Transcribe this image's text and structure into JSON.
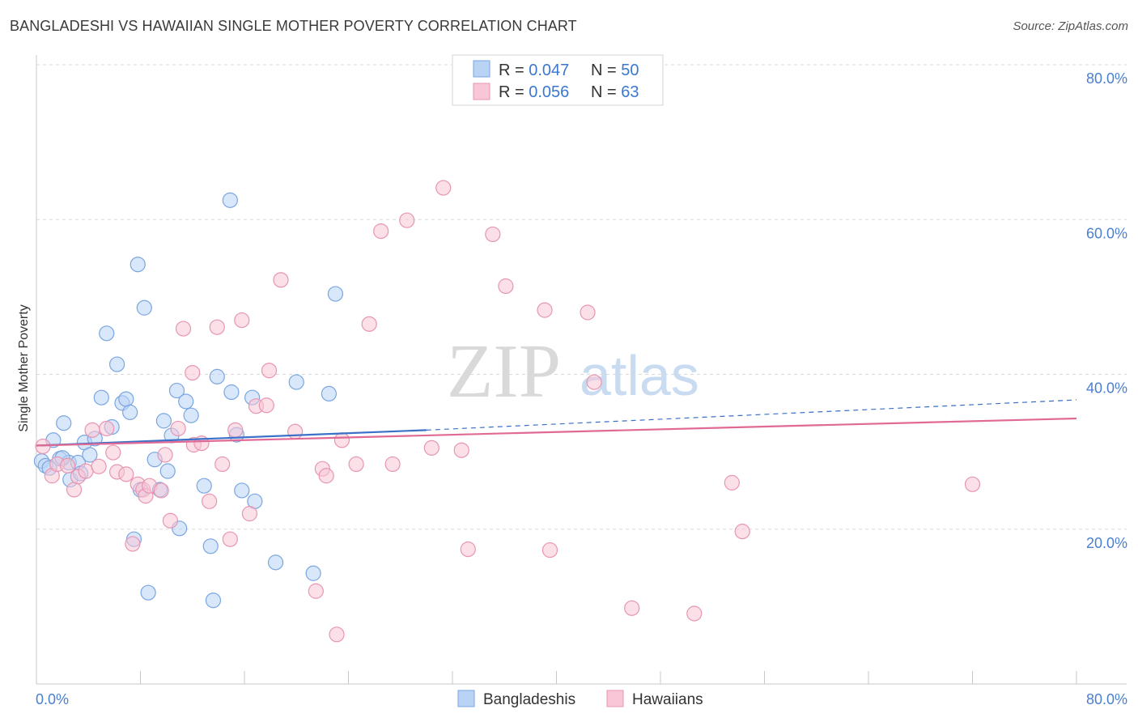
{
  "title": "BANGLADESHI VS HAWAIIAN SINGLE MOTHER POVERTY CORRELATION CHART",
  "source": "Source: ZipAtlas.com",
  "watermark": {
    "zip": "ZIP",
    "atlas": "atlas"
  },
  "colors": {
    "bangladeshi_fill": "#b9d3f5",
    "bangladeshi_stroke": "#7aa6e0",
    "bangladeshi_line": "#3a70c8",
    "hawaiian_fill": "#f8c6d6",
    "hawaiian_stroke": "#e795b2",
    "hawaiian_line": "#e06a95",
    "tick_label": "#4a7fd0",
    "grid": "#d8d8d8"
  },
  "legend": {
    "rows": [
      {
        "r_label": "R = ",
        "r_value": "0.047",
        "n_label": "N = ",
        "n_value": "50"
      },
      {
        "r_label": "R = ",
        "r_value": "0.056",
        "n_label": "N = ",
        "n_value": "63"
      }
    ]
  },
  "bottom_legend": [
    "Bangladeshis",
    "Hawaiians"
  ],
  "chart_data": {
    "type": "scatter",
    "title": "BANGLADESHI VS HAWAIIAN SINGLE MOTHER POVERTY CORRELATION CHART",
    "xlabel": "",
    "ylabel": "Single Mother Poverty",
    "xlim": [
      0,
      80
    ],
    "ylim": [
      0,
      80
    ],
    "x_tick_labels": [
      "0.0%",
      "80.0%"
    ],
    "y_ticks": [
      20,
      40,
      60,
      80
    ],
    "y_tick_labels": [
      "20.0%",
      "40.0%",
      "60.0%",
      "80.0%"
    ],
    "grid": true,
    "series": [
      {
        "name": "Bangladeshis",
        "r": 0.047,
        "n": 50,
        "trend": {
          "x0": 0,
          "y0": 30.8,
          "x1": 30,
          "y1": 32.8,
          "dashed_to_x": 80,
          "dashed_to_y": 36.7
        },
        "points": [
          [
            0.4,
            28.8
          ],
          [
            0.7,
            28.2
          ],
          [
            1.3,
            31.5
          ],
          [
            1.8,
            29.1
          ],
          [
            2.1,
            33.7
          ],
          [
            2.5,
            28.6
          ],
          [
            2.6,
            26.4
          ],
          [
            3.2,
            28.6
          ],
          [
            3.4,
            27.2
          ],
          [
            3.7,
            31.2
          ],
          [
            4.1,
            29.6
          ],
          [
            4.5,
            31.7
          ],
          [
            5.0,
            37.0
          ],
          [
            5.4,
            45.3
          ],
          [
            5.8,
            33.2
          ],
          [
            6.2,
            41.3
          ],
          [
            6.6,
            36.3
          ],
          [
            6.9,
            36.8
          ],
          [
            7.2,
            35.1
          ],
          [
            7.5,
            18.7
          ],
          [
            7.8,
            54.2
          ],
          [
            8.0,
            25.1
          ],
          [
            8.3,
            48.6
          ],
          [
            8.6,
            11.8
          ],
          [
            9.1,
            29.0
          ],
          [
            9.5,
            25.1
          ],
          [
            9.8,
            34.0
          ],
          [
            10.1,
            27.5
          ],
          [
            10.4,
            32.1
          ],
          [
            10.8,
            37.9
          ],
          [
            11.0,
            20.1
          ],
          [
            11.5,
            36.5
          ],
          [
            11.9,
            34.7
          ],
          [
            12.9,
            25.6
          ],
          [
            13.4,
            17.8
          ],
          [
            13.6,
            10.8
          ],
          [
            13.9,
            39.7
          ],
          [
            14.9,
            62.5
          ],
          [
            15.0,
            37.7
          ],
          [
            15.4,
            32.2
          ],
          [
            15.8,
            25.0
          ],
          [
            16.6,
            37.0
          ],
          [
            16.8,
            23.6
          ],
          [
            18.4,
            15.7
          ],
          [
            20.0,
            39.0
          ],
          [
            21.3,
            14.3
          ],
          [
            22.5,
            37.5
          ],
          [
            23.0,
            50.4
          ],
          [
            1.0,
            27.9
          ],
          [
            2.0,
            29.2
          ]
        ]
      },
      {
        "name": "Hawaiians",
        "r": 0.056,
        "n": 63,
        "trend": {
          "x0": 0,
          "y0": 30.8,
          "x1": 80,
          "y1": 34.3
        },
        "points": [
          [
            0.5,
            30.7
          ],
          [
            1.2,
            26.9
          ],
          [
            1.6,
            28.4
          ],
          [
            2.4,
            28.2
          ],
          [
            2.9,
            25.1
          ],
          [
            3.2,
            26.8
          ],
          [
            3.8,
            27.5
          ],
          [
            4.3,
            32.8
          ],
          [
            4.8,
            28.1
          ],
          [
            5.4,
            33.0
          ],
          [
            5.9,
            29.9
          ],
          [
            6.2,
            27.4
          ],
          [
            6.9,
            27.1
          ],
          [
            7.4,
            18.1
          ],
          [
            7.8,
            25.8
          ],
          [
            8.2,
            25.1
          ],
          [
            8.4,
            24.3
          ],
          [
            8.7,
            25.6
          ],
          [
            9.6,
            25.0
          ],
          [
            9.9,
            29.6
          ],
          [
            10.3,
            21.1
          ],
          [
            10.9,
            33.0
          ],
          [
            11.3,
            45.9
          ],
          [
            12.0,
            40.2
          ],
          [
            12.1,
            30.9
          ],
          [
            12.7,
            31.1
          ],
          [
            13.3,
            23.6
          ],
          [
            13.9,
            46.1
          ],
          [
            14.3,
            28.4
          ],
          [
            14.9,
            18.7
          ],
          [
            15.3,
            32.8
          ],
          [
            15.8,
            47.0
          ],
          [
            16.4,
            22.0
          ],
          [
            16.9,
            35.9
          ],
          [
            17.7,
            36.0
          ],
          [
            17.9,
            40.5
          ],
          [
            18.8,
            52.2
          ],
          [
            19.9,
            32.6
          ],
          [
            21.5,
            12.0
          ],
          [
            22.0,
            27.8
          ],
          [
            22.3,
            26.9
          ],
          [
            23.1,
            6.4
          ],
          [
            23.5,
            31.5
          ],
          [
            24.6,
            28.4
          ],
          [
            25.6,
            46.5
          ],
          [
            26.5,
            58.5
          ],
          [
            27.4,
            28.4
          ],
          [
            28.5,
            59.9
          ],
          [
            30.4,
            30.5
          ],
          [
            31.3,
            64.1
          ],
          [
            32.7,
            30.2
          ],
          [
            33.2,
            17.4
          ],
          [
            35.1,
            58.1
          ],
          [
            36.1,
            51.4
          ],
          [
            39.1,
            48.3
          ],
          [
            39.5,
            17.3
          ],
          [
            42.4,
            48.0
          ],
          [
            42.9,
            39.0
          ],
          [
            45.8,
            9.8
          ],
          [
            50.6,
            9.1
          ],
          [
            53.5,
            26.0
          ],
          [
            54.3,
            19.7
          ],
          [
            72.0,
            25.8
          ]
        ]
      }
    ]
  }
}
